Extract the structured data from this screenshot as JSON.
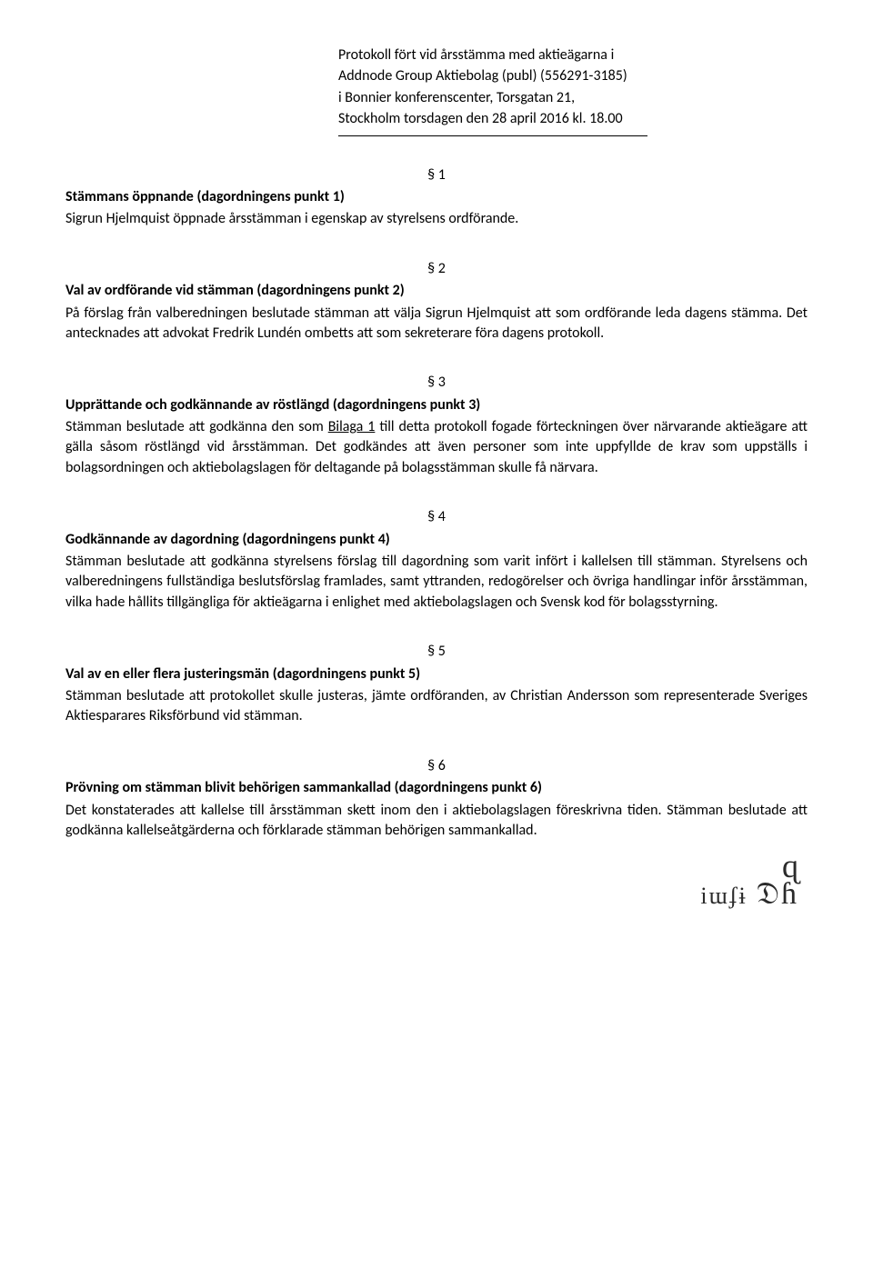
{
  "header": {
    "line1": "Protokoll fört vid årsstämma med aktieägarna i",
    "line2": "Addnode Group Aktiebolag (publ) (556291-3185)",
    "line3": "i Bonnier konferenscenter, Torsgatan 21,",
    "line4": "Stockholm torsdagen den 28 april 2016 kl. 18.00"
  },
  "s1": {
    "num": "§ 1",
    "heading": "Stämmans öppnande (dagordningens punkt 1)",
    "body": "Sigrun Hjelmquist öppnade årsstämman i egenskap av styrelsens ordförande."
  },
  "s2": {
    "num": "§ 2",
    "heading": "Val av ordförande vid stämman (dagordningens punkt 2)",
    "body": "På förslag från valberedningen beslutade stämman att välja Sigrun Hjelmquist att som ordförande leda dagens stämma. Det antecknades att advokat Fredrik Lundén ombetts att som sekreterare föra dagens protokoll."
  },
  "s3": {
    "num": "§ 3",
    "heading": "Upprättande och godkännande av röstlängd (dagordningens punkt 3)",
    "body_pre": "Stämman beslutade att godkänna den som ",
    "bilaga": "Bilaga 1",
    "body_post": " till detta protokoll fogade förteckningen över närvarande aktieägare att gälla såsom röstlängd vid årsstämman. Det godkändes att även personer som inte uppfyllde de krav som uppställs i bolagsordningen och aktiebolagslagen för deltagande på bolagsstämman skulle få närvara."
  },
  "s4": {
    "num": "§ 4",
    "heading": "Godkännande av dagordning (dagordningens punkt 4)",
    "body": "Stämman beslutade att godkänna styrelsens förslag till dagordning som varit infört i kallelsen till stämman. Styrelsens och valberedningens fullständiga beslutsförslag framlades, samt yttranden, redogörelser och övriga handlingar inför årsstämman, vilka hade hållits tillgängliga för aktieägarna i enlighet med aktiebolagslagen och Svensk kod för bolagsstyrning."
  },
  "s5": {
    "num": "§ 5",
    "heading": "Val av en eller flera justeringsmän (dagordningens punkt 5)",
    "body": "Stämman beslutade att protokollet skulle justeras, jämte ordföranden, av Christian Andersson som representerade Sveriges Aktiesparares Riksförbund vid stämman."
  },
  "s6": {
    "num": "§ 6",
    "heading": "Prövning om stämman blivit behörigen sammankallad (dagordningens punkt 6)",
    "body": "Det konstaterades att kallelse till årsstämman skett inom den i aktiebolagslagen föreskrivna tiden. Stämman beslutade att godkänna kallelseåtgärderna och förklarade stämman behörigen sammankallad."
  }
}
